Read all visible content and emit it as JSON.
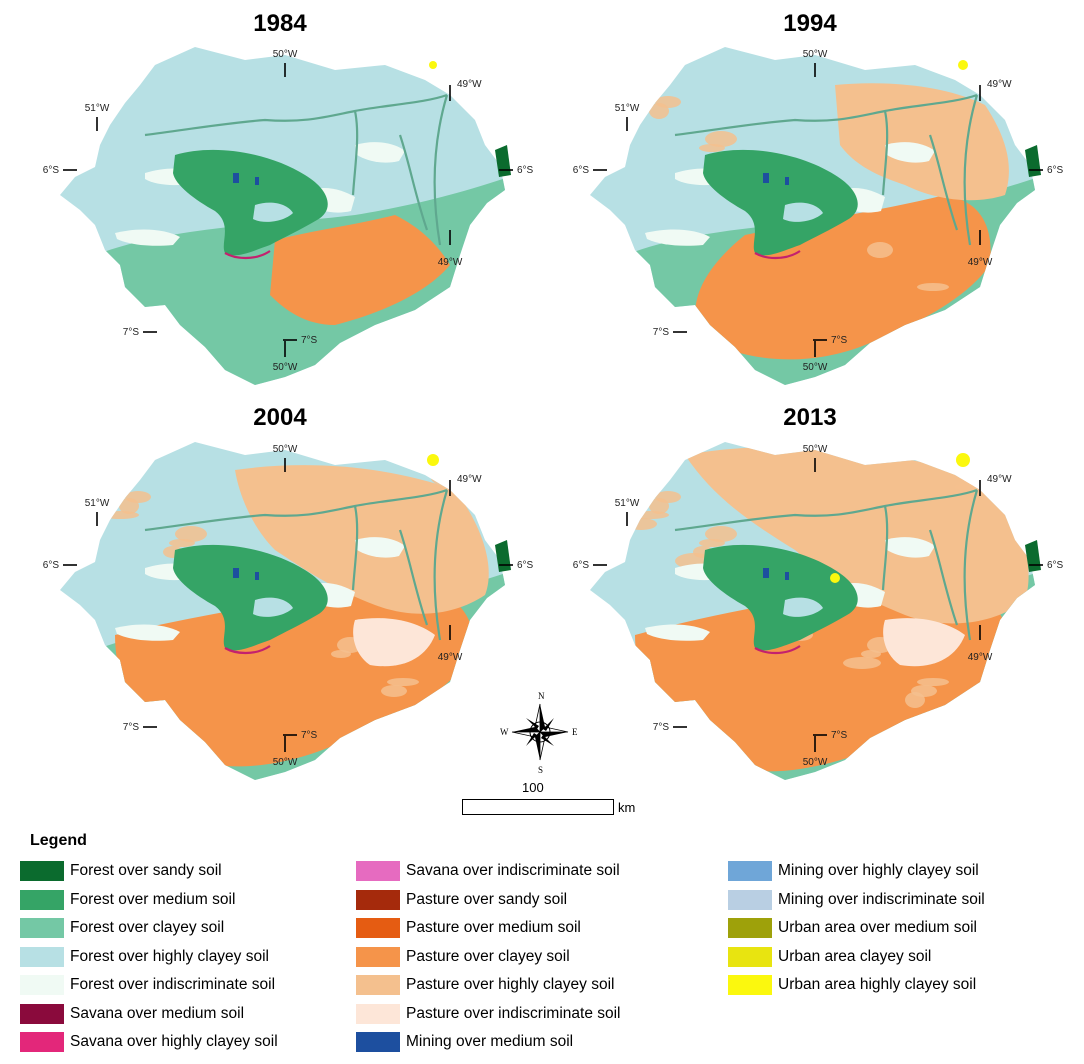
{
  "panels": [
    {
      "year": "1984",
      "lat_top": "6°S",
      "lat_top_right": "6°S",
      "lat_bottom": "7°S",
      "lat_bottom_mid": "7°S",
      "lon_top": "50°W",
      "lon_left": "51°W",
      "lon_right_top": "49°W",
      "lon_right_mid": "49°W",
      "lon_bottom": "50°W"
    },
    {
      "year": "1994",
      "lat_top": "6°S",
      "lat_top_right": "6°S",
      "lat_bottom": "7°S",
      "lat_bottom_mid": "7°S",
      "lon_top": "50°W",
      "lon_left": "51°W",
      "lon_right_top": "49°W",
      "lon_right_mid": "49°W",
      "lon_bottom": "50°W"
    },
    {
      "year": "2004",
      "lat_top": "6°S",
      "lat_top_right": "6°S",
      "lat_bottom": "7°S",
      "lat_bottom_mid": "7°S",
      "lon_top": "50°W",
      "lon_left": "51°W",
      "lon_right_top": "49°W",
      "lon_right_mid": "49°W",
      "lon_bottom": "50°W"
    },
    {
      "year": "2013",
      "lat_top": "6°S",
      "lat_top_right": "6°S",
      "lat_bottom": "7°S",
      "lat_bottom_mid": "7°S",
      "lon_top": "50°W",
      "lon_left": "51°W",
      "lon_right_top": "49°W",
      "lon_right_mid": "49°W",
      "lon_bottom": "50°W"
    }
  ],
  "compass": {
    "n": "N",
    "s": "S",
    "e": "E",
    "w": "W"
  },
  "scale": {
    "value": "100",
    "unit": "km"
  },
  "legend": {
    "title": "Legend",
    "columns": [
      [
        {
          "label": "Forest over sandy soil",
          "color": "#0b6b2e"
        },
        {
          "label": "Forest over medium soil",
          "color": "#35a466"
        },
        {
          "label": "Forest over clayey soil",
          "color": "#74c8a5"
        },
        {
          "label": "Forest over highly clayey soil",
          "color": "#b7e0e4"
        },
        {
          "label": "Forest over indiscriminate soil",
          "color": "#f0faf4"
        },
        {
          "label": "Savana over medium soil",
          "color": "#8a0a3c"
        },
        {
          "label": "Savana over highly clayey soil",
          "color": "#e3277a"
        }
      ],
      [
        {
          "label": "Savana over indiscriminate soil",
          "color": "#e66bc0"
        },
        {
          "label": "Pasture over sandy soil",
          "color": "#a52a0c"
        },
        {
          "label": "Pasture over medium soil",
          "color": "#e55c12"
        },
        {
          "label": "Pasture over clayey soil",
          "color": "#f5944a"
        },
        {
          "label": "Pasture over highly clayey soil",
          "color": "#f4c08e"
        },
        {
          "label": "Pasture over indiscriminate soil",
          "color": "#fde6d8"
        },
        {
          "label": "Mining over medium soil",
          "color": "#1d4f9f"
        }
      ],
      [
        {
          "label": "Mining over highly clayey soil",
          "color": "#6fa6d8"
        },
        {
          "label": "Mining over indiscriminate soil",
          "color": "#b9cfe3"
        },
        {
          "label": "Urban area over medium soil",
          "color": "#9ea10a"
        },
        {
          "label": "Urban area clayey soil",
          "color": "#e8e410"
        },
        {
          "label": "Urban area highly clayey soil",
          "color": "#fbf80e"
        }
      ]
    ]
  },
  "map_colors": {
    "forest_sandy": "#0b6b2e",
    "forest_medium": "#35a466",
    "forest_clayey": "#74c8a5",
    "forest_highly_clayey": "#b7e0e4",
    "forest_indiscriminate": "#f0faf4",
    "savana_highly_clayey": "#c4216e",
    "pasture_clayey": "#f5944a",
    "pasture_highly_clayey": "#f4c08e",
    "pasture_indiscriminate": "#fde6d8",
    "mining": "#1d4f9f",
    "urban": "#fbf80e",
    "river": "#5fa88f"
  }
}
